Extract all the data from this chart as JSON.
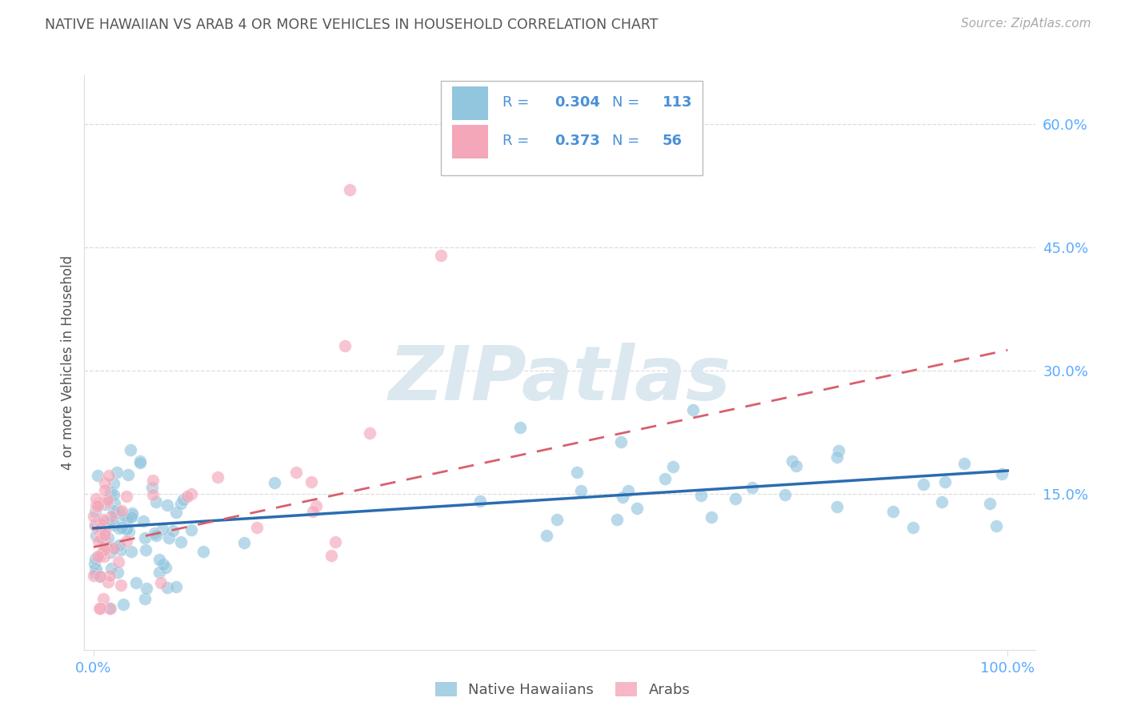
{
  "title": "NATIVE HAWAIIAN VS ARAB 4 OR MORE VEHICLES IN HOUSEHOLD CORRELATION CHART",
  "source_text": "Source: ZipAtlas.com",
  "ylabel": "4 or more Vehicles in Household",
  "xlim": [
    -0.01,
    1.03
  ],
  "ylim": [
    -0.04,
    0.66
  ],
  "y_ticks": [
    0.15,
    0.3,
    0.45,
    0.6
  ],
  "y_tick_labels": [
    "15.0%",
    "30.0%",
    "45.0%",
    "60.0%"
  ],
  "x_tick_labels": [
    "0.0%",
    "100.0%"
  ],
  "legend_r1": "0.304",
  "legend_n1": "113",
  "legend_r2": "0.373",
  "legend_n2": "56",
  "blue_dot_color": "#92c5de",
  "pink_dot_color": "#f4a7b9",
  "blue_line_color": "#2b6cb0",
  "pink_line_color": "#d95f6e",
  "watermark_color": "#dce8f0",
  "axis_tick_color": "#5aabff",
  "title_color": "#555555",
  "source_color": "#aaaaaa",
  "legend_text_color": "#4a90d9",
  "background_color": "#ffffff",
  "grid_color": "#dddddd",
  "blue_line_start_y": 0.108,
  "blue_line_end_y": 0.178,
  "pink_line_start_y": 0.085,
  "pink_line_end_y": 0.325
}
